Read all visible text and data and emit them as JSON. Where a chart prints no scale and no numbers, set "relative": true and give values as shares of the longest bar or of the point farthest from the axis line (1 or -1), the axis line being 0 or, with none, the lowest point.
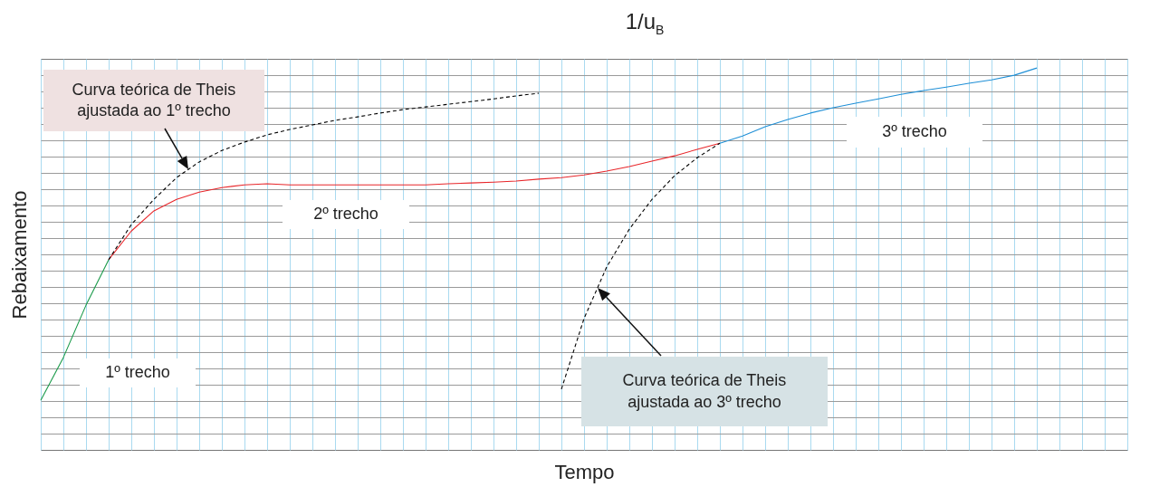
{
  "chart_data": {
    "type": "line",
    "title": "1/u$_{B}$",
    "xlabel": "Tempo",
    "ylabel": "Rebaixamento",
    "relative": true,
    "grid": true,
    "tick_labels": false,
    "marker": "none",
    "categories": [
      null,
      null,
      null,
      null,
      null,
      null,
      null,
      null,
      null,
      null,
      null,
      null,
      null,
      null,
      null,
      null,
      null,
      null,
      null,
      null,
      null,
      null,
      null,
      null,
      null,
      null,
      null,
      null,
      null,
      null,
      null,
      null,
      null,
      null,
      null,
      null,
      null,
      null,
      null,
      null,
      null,
      null,
      null,
      null,
      null,
      null,
      null,
      null,
      null
    ],
    "series": [
      {
        "color": "#1a9a4a",
        "line_style": "solid",
        "values": [
          0.13,
          0.242,
          0.379,
          0.498,
          null,
          null,
          null,
          null,
          null,
          null,
          null,
          null,
          null,
          null,
          null,
          null,
          null,
          null,
          null,
          null,
          null,
          null,
          null,
          null,
          null,
          null,
          null,
          null,
          null,
          null,
          null,
          null,
          null,
          null,
          null,
          null,
          null,
          null,
          null,
          null,
          null,
          null,
          null,
          null,
          null,
          null,
          null,
          null,
          null
        ]
      },
      {
        "color": "#e8262a",
        "line_style": "solid",
        "values": [
          null,
          null,
          null,
          0.498,
          0.573,
          0.626,
          0.656,
          0.675,
          0.687,
          0.694,
          0.697,
          0.694,
          0.694,
          0.694,
          0.694,
          0.694,
          0.694,
          0.694,
          0.697,
          0.699,
          0.701,
          0.704,
          0.709,
          0.713,
          0.72,
          0.73,
          0.742,
          0.756,
          0.77,
          0.787,
          0.803,
          null,
          null,
          null,
          null,
          null,
          null,
          null,
          null,
          null,
          null,
          null,
          null,
          null,
          null,
          null,
          null,
          null,
          null
        ]
      },
      {
        "color": "#1f8fd6",
        "line_style": "solid",
        "values": [
          null,
          null,
          null,
          null,
          null,
          null,
          null,
          null,
          null,
          null,
          null,
          null,
          null,
          null,
          null,
          null,
          null,
          null,
          null,
          null,
          null,
          null,
          null,
          null,
          null,
          null,
          null,
          null,
          null,
          null,
          0.803,
          0.822,
          0.846,
          0.865,
          0.882,
          0.896,
          0.908,
          0.919,
          0.931,
          0.941,
          0.95,
          0.96,
          0.969,
          0.981,
          1.0,
          null,
          null,
          null,
          null
        ]
      },
      {
        "color": "#000000",
        "line_style": "dashed",
        "values": [
          null,
          null,
          null,
          0.498,
          0.59,
          0.656,
          0.713,
          0.754,
          0.784,
          0.806,
          0.825,
          0.839,
          0.851,
          0.863,
          0.872,
          0.882,
          0.891,
          0.898,
          0.905,
          0.912,
          0.919,
          0.927,
          0.934,
          null,
          null,
          null,
          null,
          null,
          null,
          null,
          null,
          null,
          null,
          null,
          null,
          null,
          null,
          null,
          null,
          null,
          null,
          null,
          null,
          null,
          null,
          null,
          null,
          null,
          null
        ]
      },
      {
        "color": "#000000",
        "line_style": "dashed",
        "values": [
          null,
          null,
          null,
          null,
          null,
          null,
          null,
          null,
          null,
          null,
          null,
          null,
          null,
          null,
          null,
          null,
          null,
          null,
          null,
          null,
          null,
          null,
          null,
          0.159,
          0.344,
          0.479,
          0.578,
          0.656,
          0.718,
          0.765,
          0.803,
          null,
          null,
          null,
          null,
          null,
          null,
          null,
          null,
          null,
          null,
          null,
          null,
          null,
          null,
          null,
          null,
          null,
          null
        ]
      }
    ],
    "annotations": [
      "Curva teórica de Theis\najustada ao 1º trecho",
      "2º trecho",
      "3º trecho",
      "1º trecho",
      "Curva teórica de Theis\najustada ao 3º trecho"
    ]
  }
}
